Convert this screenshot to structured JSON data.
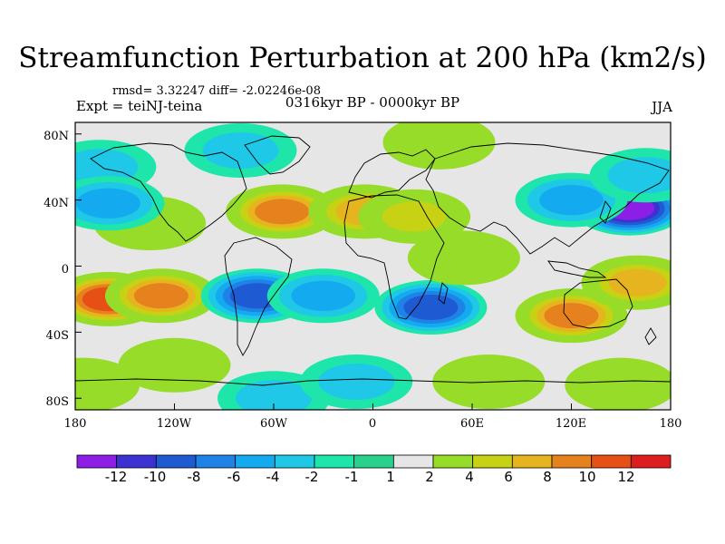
{
  "title": "Streamfunction Perturbation at 200 hPa (km2/s)",
  "stats": "rmsd= 3.32247  diff= -2.02246e-08",
  "experiment": "Expt = teiNJ-teina",
  "period": "0316kyr BP - 0000kyr BP",
  "season": "JJA",
  "x_axis": {
    "ticks": [
      "180",
      "120W",
      "60W",
      "0",
      "60E",
      "120E",
      "180"
    ]
  },
  "y_axis": {
    "ticks": [
      "80N",
      "40N",
      "0",
      "40S",
      "80S"
    ]
  },
  "colorbar": {
    "labels": [
      "-12",
      "-10",
      "-8",
      "-6",
      "-4",
      "-2",
      "-1",
      "1",
      "2",
      "4",
      "6",
      "8",
      "10",
      "12"
    ],
    "colors": [
      "#8c1ee6",
      "#3c32d2",
      "#1e5ad2",
      "#1e82e6",
      "#14aaf0",
      "#1ec8e6",
      "#1ee6aa",
      "#e6e6e6",
      "#96dc28",
      "#c8d214",
      "#e6b41e",
      "#e6821e",
      "#e65014",
      "#dc1e1e"
    ]
  },
  "map_data": {
    "features": [
      {
        "lon": -135,
        "lat": 26,
        "value": 1
      },
      {
        "lon": -160,
        "lat": -20,
        "value": 10
      },
      {
        "lon": -128,
        "lat": -18,
        "value": 8
      },
      {
        "lon": -70,
        "lat": -18,
        "value": -8
      },
      {
        "lon": -30,
        "lat": -18,
        "value": -5
      },
      {
        "lon": 35,
        "lat": -25,
        "value": -8
      },
      {
        "lon": -55,
        "lat": 33,
        "value": 8
      },
      {
        "lon": -5,
        "lat": 33,
        "value": 6
      },
      {
        "lon": 25,
        "lat": 30,
        "value": 4
      },
      {
        "lon": 55,
        "lat": 5,
        "value": 2
      },
      {
        "lon": 120,
        "lat": -30,
        "value": 8
      },
      {
        "lon": 160,
        "lat": -10,
        "value": 6
      },
      {
        "lon": 155,
        "lat": 35,
        "value": -12
      },
      {
        "lon": 120,
        "lat": 40,
        "value": -5
      },
      {
        "lon": 165,
        "lat": 55,
        "value": -3
      },
      {
        "lon": 40,
        "lat": 75,
        "value": 2
      },
      {
        "lon": -80,
        "lat": 70,
        "value": -2
      },
      {
        "lon": -165,
        "lat": 60,
        "value": -3
      },
      {
        "lon": -160,
        "lat": 38,
        "value": -5
      },
      {
        "lon": -120,
        "lat": -60,
        "value": 2
      },
      {
        "lon": -60,
        "lat": -80,
        "value": -2
      },
      {
        "lon": -10,
        "lat": -70,
        "value": -3
      },
      {
        "lon": 70,
        "lat": -70,
        "value": 2
      },
      {
        "lon": 150,
        "lat": -72,
        "value": 2
      },
      {
        "lon": -175,
        "lat": -72,
        "value": 3
      }
    ]
  }
}
